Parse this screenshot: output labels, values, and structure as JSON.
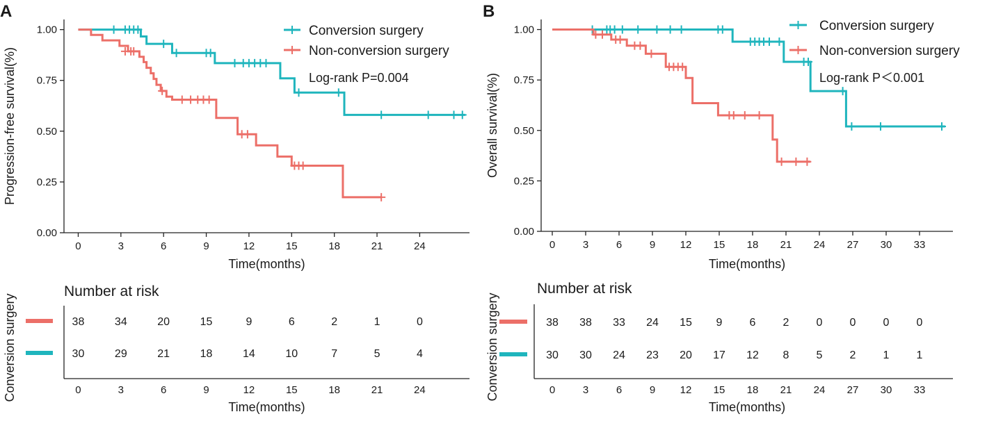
{
  "colors": {
    "conversion": "#1fb5bd",
    "non_conversion": "#ec6f68",
    "axis": "#222222",
    "text": "#1a1a1a"
  },
  "chart_data": [
    {
      "panel": "A",
      "type": "line",
      "subtype": "kaplan-meier",
      "ylabel": "Progression-free survival(%)",
      "xlabel": "Time(months)",
      "xlim": [
        -1,
        27.5
      ],
      "ylim": [
        0,
        1.05
      ],
      "xticks": [
        0,
        3,
        6,
        9,
        12,
        15,
        18,
        21,
        24
      ],
      "yticks": [
        0,
        0.25,
        0.5,
        0.75,
        1.0
      ],
      "ytick_labels": [
        "0.00",
        "0.25",
        "0.50",
        "0.75",
        "1.00"
      ],
      "legend_position": "top-right",
      "annotation": "Log-rank P=0.004",
      "series": [
        {
          "name": "Conversion surgery",
          "key": "conversion",
          "steps": [
            [
              0,
              1.0
            ],
            [
              4.4,
              0.966
            ],
            [
              4.8,
              0.93
            ],
            [
              6.6,
              0.885
            ],
            [
              9.6,
              0.835
            ],
            [
              14.2,
              0.76
            ],
            [
              15.2,
              0.69
            ],
            [
              18.7,
              0.58
            ],
            [
              27.2,
              0.58
            ]
          ],
          "censors": [
            [
              2.5,
              1.0
            ],
            [
              3.3,
              1.0
            ],
            [
              3.6,
              1.0
            ],
            [
              3.9,
              1.0
            ],
            [
              4.2,
              1.0
            ],
            [
              6.0,
              0.93
            ],
            [
              6.9,
              0.885
            ],
            [
              9.0,
              0.885
            ],
            [
              9.3,
              0.885
            ],
            [
              11.0,
              0.835
            ],
            [
              11.6,
              0.835
            ],
            [
              12.0,
              0.835
            ],
            [
              12.4,
              0.835
            ],
            [
              12.8,
              0.835
            ],
            [
              13.2,
              0.835
            ],
            [
              15.5,
              0.69
            ],
            [
              18.3,
              0.69
            ],
            [
              21.3,
              0.58
            ],
            [
              24.6,
              0.58
            ],
            [
              26.4,
              0.58
            ],
            [
              27.0,
              0.58
            ]
          ]
        },
        {
          "name": "Non-conversion surgery",
          "key": "non_conversion",
          "steps": [
            [
              0,
              1.0
            ],
            [
              0.9,
              0.974
            ],
            [
              1.7,
              0.947
            ],
            [
              2.9,
              0.92
            ],
            [
              3.5,
              0.893
            ],
            [
              4.3,
              0.866
            ],
            [
              4.6,
              0.84
            ],
            [
              4.8,
              0.812
            ],
            [
              5.1,
              0.785
            ],
            [
              5.3,
              0.757
            ],
            [
              5.5,
              0.728
            ],
            [
              5.8,
              0.698
            ],
            [
              6.2,
              0.67
            ],
            [
              6.6,
              0.655
            ],
            [
              9.7,
              0.565
            ],
            [
              11.2,
              0.485
            ],
            [
              12.5,
              0.43
            ],
            [
              14.0,
              0.375
            ],
            [
              15.0,
              0.33
            ],
            [
              18.6,
              0.175
            ],
            [
              21.3,
              0.175
            ]
          ],
          "censors": [
            [
              3.3,
              0.893
            ],
            [
              3.7,
              0.893
            ],
            [
              3.9,
              0.893
            ],
            [
              5.9,
              0.698
            ],
            [
              7.3,
              0.655
            ],
            [
              7.9,
              0.655
            ],
            [
              8.4,
              0.655
            ],
            [
              8.8,
              0.655
            ],
            [
              9.2,
              0.655
            ],
            [
              11.5,
              0.485
            ],
            [
              11.9,
              0.485
            ],
            [
              15.2,
              0.33
            ],
            [
              15.5,
              0.33
            ],
            [
              15.8,
              0.33
            ],
            [
              21.3,
              0.175
            ]
          ]
        }
      ],
      "risk_table": {
        "title": "Number at risk",
        "ylabel": "Conversion surgery",
        "xlabel": "Time(months)",
        "times": [
          0,
          3,
          6,
          9,
          12,
          15,
          18,
          21,
          24
        ],
        "rows": [
          {
            "key": "non_conversion",
            "values": [
              "38",
              "34",
              "20",
              "15",
              "9",
              "6",
              "2",
              "1",
              "0"
            ]
          },
          {
            "key": "conversion",
            "values": [
              "30",
              "29",
              "21",
              "18",
              "14",
              "10",
              "7",
              "5",
              "4"
            ]
          }
        ]
      }
    },
    {
      "panel": "B",
      "type": "line",
      "subtype": "kaplan-meier",
      "ylabel": "Overall survival(%)",
      "xlabel": "Time(months)",
      "xlim": [
        -1,
        36
      ],
      "ylim": [
        0,
        1.05
      ],
      "xticks": [
        0,
        3,
        6,
        9,
        12,
        15,
        18,
        21,
        24,
        27,
        30,
        33
      ],
      "yticks": [
        0,
        0.25,
        0.5,
        0.75,
        1.0
      ],
      "ytick_labels": [
        "0.00",
        "0.25",
        "0.50",
        "0.75",
        "1.00"
      ],
      "legend_position": "top-right",
      "annotation": "Log-rank P＜0.001",
      "series": [
        {
          "name": "Conversion surgery",
          "key": "conversion",
          "steps": [
            [
              0,
              1.0
            ],
            [
              16.2,
              0.94
            ],
            [
              20.8,
              0.84
            ],
            [
              23.2,
              0.695
            ],
            [
              26.4,
              0.52
            ],
            [
              35.3,
              0.52
            ]
          ],
          "censors": [
            [
              3.6,
              1.0
            ],
            [
              4.9,
              1.0
            ],
            [
              5.2,
              1.0
            ],
            [
              5.6,
              1.0
            ],
            [
              6.3,
              1.0
            ],
            [
              7.7,
              1.0
            ],
            [
              9.4,
              1.0
            ],
            [
              10.6,
              1.0
            ],
            [
              11.6,
              1.0
            ],
            [
              14.9,
              1.0
            ],
            [
              15.3,
              1.0
            ],
            [
              17.8,
              0.94
            ],
            [
              18.2,
              0.94
            ],
            [
              18.6,
              0.94
            ],
            [
              19.0,
              0.94
            ],
            [
              19.5,
              0.94
            ],
            [
              20.4,
              0.94
            ],
            [
              22.6,
              0.84
            ],
            [
              23.0,
              0.84
            ],
            [
              26.1,
              0.695
            ],
            [
              26.9,
              0.52
            ],
            [
              29.5,
              0.52
            ],
            [
              35.0,
              0.52
            ]
          ]
        },
        {
          "name": "Non-conversion surgery",
          "key": "non_conversion",
          "steps": [
            [
              0,
              1.0
            ],
            [
              3.7,
              0.975
            ],
            [
              5.3,
              0.95
            ],
            [
              6.7,
              0.92
            ],
            [
              8.4,
              0.88
            ],
            [
              10.2,
              0.815
            ],
            [
              12.0,
              0.76
            ],
            [
              12.6,
              0.635
            ],
            [
              14.9,
              0.575
            ],
            [
              19.8,
              0.455
            ],
            [
              20.2,
              0.345
            ],
            [
              23.2,
              0.345
            ]
          ],
          "censors": [
            [
              3.9,
              0.975
            ],
            [
              4.5,
              0.975
            ],
            [
              5.7,
              0.95
            ],
            [
              6.1,
              0.95
            ],
            [
              7.4,
              0.92
            ],
            [
              7.9,
              0.92
            ],
            [
              8.9,
              0.88
            ],
            [
              10.5,
              0.815
            ],
            [
              10.9,
              0.815
            ],
            [
              11.3,
              0.815
            ],
            [
              11.7,
              0.815
            ],
            [
              15.9,
              0.575
            ],
            [
              16.3,
              0.575
            ],
            [
              17.3,
              0.575
            ],
            [
              18.6,
              0.575
            ],
            [
              20.6,
              0.345
            ],
            [
              21.9,
              0.345
            ],
            [
              22.9,
              0.345
            ]
          ]
        }
      ],
      "risk_table": {
        "title": "Number at risk",
        "ylabel": "Conversion surgery",
        "xlabel": "Time(months)",
        "times": [
          0,
          3,
          6,
          9,
          12,
          15,
          18,
          21,
          24,
          27,
          30,
          33
        ],
        "rows": [
          {
            "key": "non_conversion",
            "values": [
              "38",
              "38",
              "33",
              "24",
              "15",
              "9",
              "6",
              "2",
              "0",
              "0",
              "0",
              "0"
            ]
          },
          {
            "key": "conversion",
            "values": [
              "30",
              "30",
              "24",
              "23",
              "20",
              "17",
              "12",
              "8",
              "5",
              "2",
              "1",
              "1"
            ]
          }
        ]
      }
    }
  ]
}
